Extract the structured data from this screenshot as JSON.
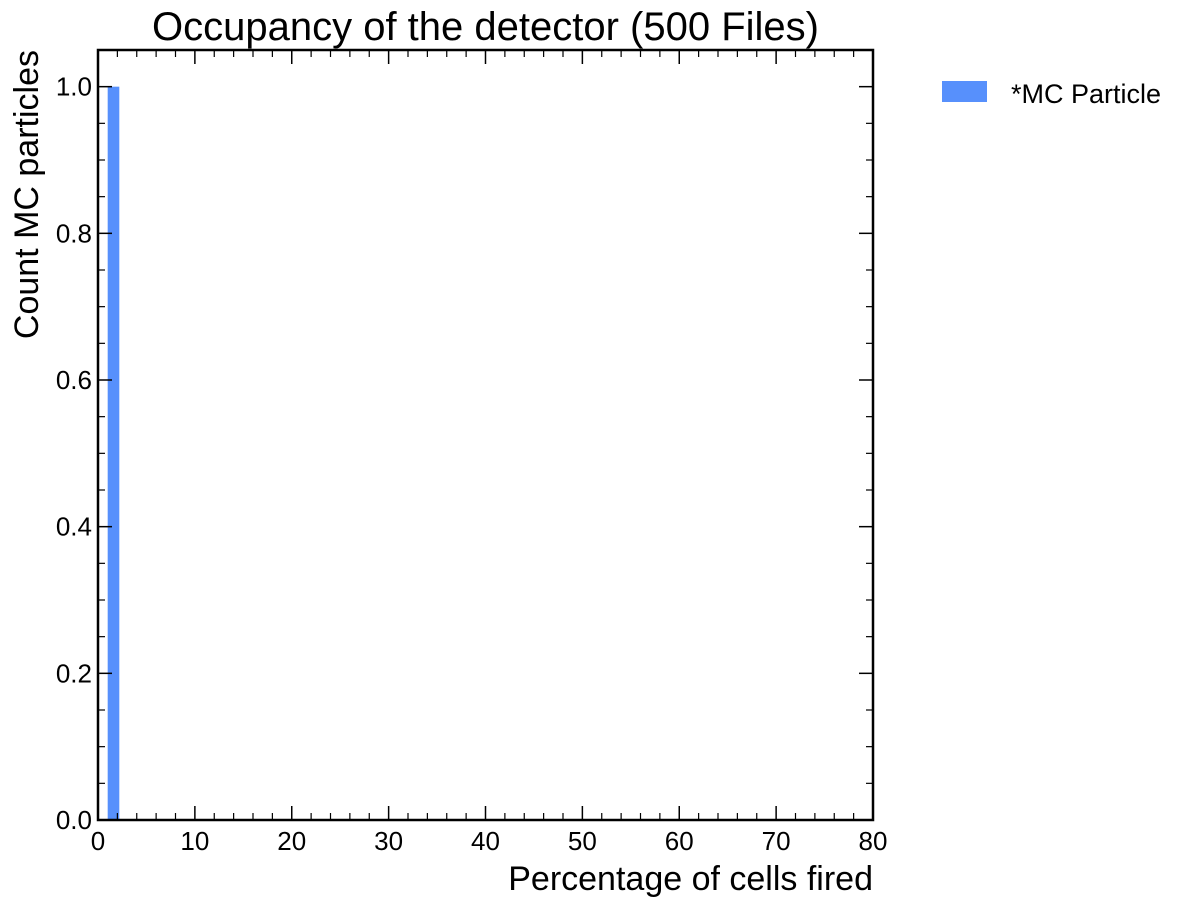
{
  "chart_data": {
    "type": "bar",
    "title": "Occupancy of the detector (500 Files)",
    "xlabel": "Percentage of cells fired",
    "ylabel": "Count MC particles",
    "xlim": [
      0,
      80
    ],
    "ylim": [
      0,
      1.05
    ],
    "x_ticks": [
      "0",
      "10",
      "20",
      "30",
      "40",
      "50",
      "60",
      "70",
      "80"
    ],
    "x_tick_values": [
      0,
      10,
      20,
      30,
      40,
      50,
      60,
      70,
      80
    ],
    "y_ticks": [
      "0.0",
      "0.2",
      "0.4",
      "0.6",
      "0.8",
      "1.0"
    ],
    "y_tick_values": [
      0,
      0.2,
      0.4,
      0.6,
      0.8,
      1.0
    ],
    "grid": false,
    "legend_position": "outside-top-right",
    "series": [
      {
        "name": "*MC Particle",
        "color": "#5790fc",
        "bins": [
          {
            "x0": 1.0,
            "x1": 2.2,
            "value": 1.0
          }
        ]
      }
    ]
  }
}
